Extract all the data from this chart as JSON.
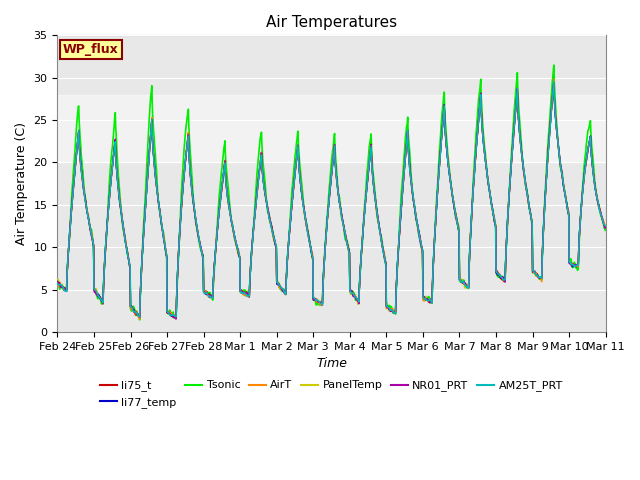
{
  "title": "Air Temperatures",
  "ylabel": "Air Temperature (C)",
  "xlabel": "Time",
  "ylim": [
    0,
    35
  ],
  "yticks": [
    0,
    5,
    10,
    15,
    20,
    25,
    30,
    35
  ],
  "background_color": "#e8e8e8",
  "plot_bg_color": "#e8e8e8",
  "shade_band_low": 20,
  "shade_band_high": 28,
  "shade_color": "#d0d0d0",
  "legend_box_label": "WP_flux",
  "legend_box_facecolor": "#ffff99",
  "legend_box_edgecolor": "#8B0000",
  "legend_box_textcolor": "#8B0000",
  "series": [
    {
      "name": "li75_t",
      "color": "#cc0000",
      "lw": 1.0,
      "zorder": 5
    },
    {
      "name": "li77_temp",
      "color": "#0000cc",
      "lw": 1.0,
      "zorder": 6
    },
    {
      "name": "Tsonic",
      "color": "#00ee00",
      "lw": 1.2,
      "zorder": 4
    },
    {
      "name": "AirT",
      "color": "#ff8800",
      "lw": 1.0,
      "zorder": 7
    },
    {
      "name": "PanelTemp",
      "color": "#cccc00",
      "lw": 1.0,
      "zorder": 3
    },
    {
      "name": "NR01_PRT",
      "color": "#aa00aa",
      "lw": 1.0,
      "zorder": 8
    },
    {
      "name": "AM25T_PRT",
      "color": "#00bbbb",
      "lw": 1.0,
      "zorder": 9
    }
  ],
  "xtick_labels": [
    "Feb 24",
    "Feb 25",
    "Feb 26",
    "Feb 27",
    "Feb 28",
    "Mar 1",
    "Mar 2",
    "Mar 3",
    "Mar 4",
    "Mar 5",
    "Mar 6",
    "Mar 7",
    "Mar 8",
    "Mar 9",
    "Mar 10",
    "Mar 11"
  ],
  "daily_mins": [
    5,
    4,
    2,
    1,
    4,
    4,
    5,
    3,
    4,
    2,
    3,
    5,
    6,
    6,
    7,
    10
  ],
  "daily_maxs": [
    22,
    25,
    21,
    28,
    20,
    20,
    22,
    22,
    22,
    22,
    25,
    28,
    28,
    29,
    30,
    18
  ],
  "tsonic_extra_boost": [
    3,
    3,
    3,
    5,
    2,
    3,
    2,
    2,
    1,
    2,
    2,
    2,
    2,
    2,
    2,
    2
  ]
}
